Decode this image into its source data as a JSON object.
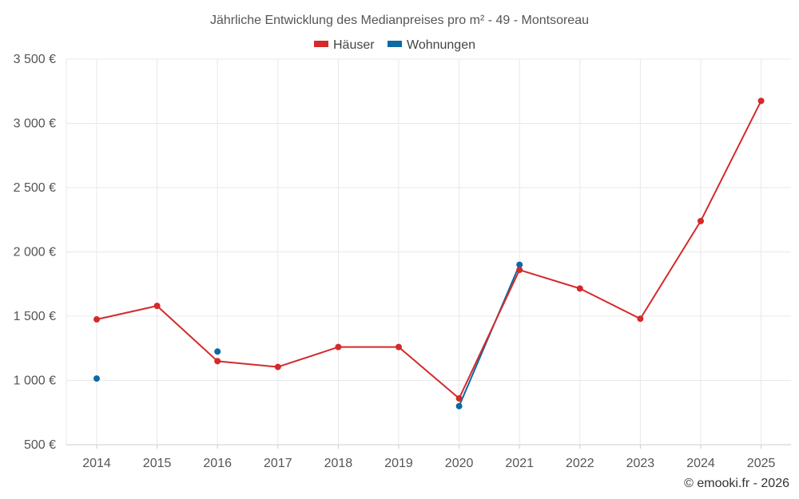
{
  "chart_data": {
    "type": "line",
    "title": "Jährliche Entwicklung des Medianpreises pro m² - 49 - Montsoreau",
    "categories": [
      "2014",
      "2015",
      "2016",
      "2017",
      "2018",
      "2019",
      "2020",
      "2021",
      "2022",
      "2023",
      "2024",
      "2025"
    ],
    "series": [
      {
        "name": "Häuser",
        "color": "#d42a2a",
        "values": [
          1475,
          1580,
          1150,
          1105,
          1260,
          1260,
          860,
          1860,
          1715,
          1480,
          2240,
          3175
        ]
      },
      {
        "name": "Wohnungen",
        "color": "#0b6aa3",
        "values": [
          1015,
          null,
          1225,
          null,
          null,
          null,
          800,
          1900,
          null,
          null,
          null,
          null
        ]
      }
    ],
    "yticks": [
      "3 500 €",
      "3 000 €",
      "2 500 €",
      "2 000 €",
      "1 500 €",
      "1 000 €",
      "500 €"
    ],
    "ylim": [
      500,
      3500
    ],
    "grid": true,
    "legend": "top-center",
    "credit": "© emooki.fr - 2026"
  }
}
